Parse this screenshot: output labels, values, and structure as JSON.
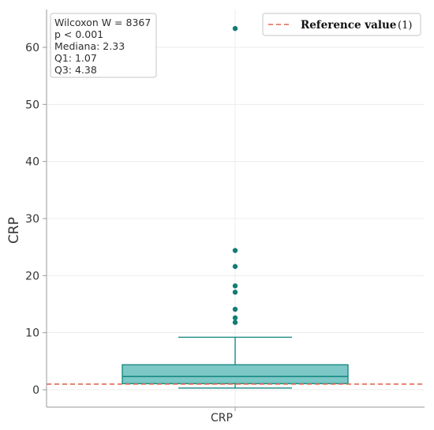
{
  "chart_data": {
    "type": "box",
    "category": "CRP",
    "ylabel": "CRP",
    "ylim": [
      -3,
      66
    ],
    "yticks": [
      0,
      10,
      20,
      30,
      40,
      50,
      60
    ],
    "grid": true,
    "box": {
      "q1": 1.07,
      "median": 2.33,
      "q3": 4.38,
      "whisker_low": 0.3,
      "whisker_high": 9.2
    },
    "outliers": [
      63.3,
      24.4,
      21.6,
      18.2,
      17.1,
      14.1,
      12.6,
      11.8
    ],
    "reference": {
      "value": 1,
      "label": "Reference value",
      "count_label": "(1)"
    },
    "stats_lines": [
      "Wilcoxon W = 8367",
      "p < 0.001",
      "Mediana: 2.33",
      "Q1: 1.07",
      "Q3: 4.38"
    ],
    "colors": {
      "box_fill": "#7cc8c6",
      "box_edge": "#1a8a84",
      "outlier": "#137c76",
      "reference_line": "#e2674e",
      "grid": "#ececec",
      "axis": "#9a9a9a"
    }
  }
}
